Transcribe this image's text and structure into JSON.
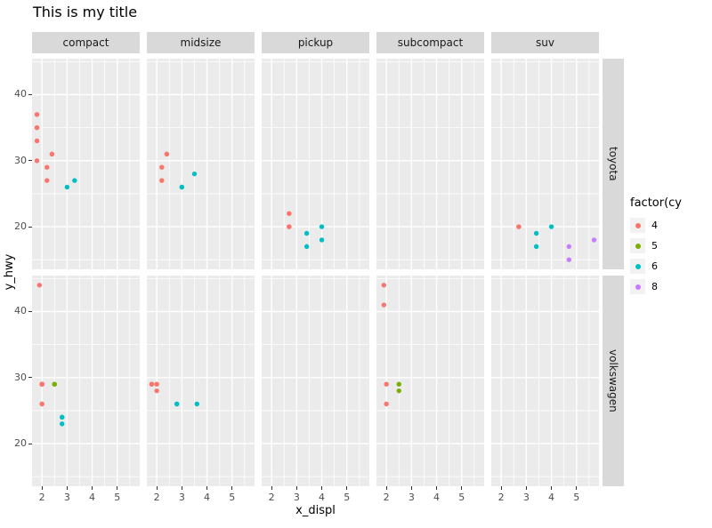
{
  "colors": {
    "panel_bg": "#EBEBEB",
    "strip_bg": "#D9D9D9",
    "strip_text": "#1A1A1A",
    "grid": "#FFFFFF",
    "axis_text": "#4D4D4D",
    "tick": "#333333",
    "title_text": "#000000",
    "legend_key_bg": "#F2F2F2"
  },
  "chart_data": {
    "type": "scatter",
    "title": "This is my title",
    "xlabel": "x_displ",
    "ylabel": "y_hwy",
    "facet_cols": [
      "compact",
      "midsize",
      "pickup",
      "subcompact",
      "suv"
    ],
    "facet_rows": [
      "toyota",
      "volkswagen"
    ],
    "x_ticks": [
      2,
      3,
      4,
      5
    ],
    "x_minor": [
      2.5,
      3.5,
      4.5,
      5.5
    ],
    "y_ticks": [
      20,
      30,
      40
    ],
    "y_minor": [
      15,
      25,
      35,
      45
    ],
    "xlim": [
      1.605,
      5.895
    ],
    "ylim": [
      13.55,
      45.45
    ],
    "grid": true,
    "legend": {
      "title": "factor(cy",
      "position": "right",
      "entries": [
        {
          "label": "4",
          "color": "#F8766D"
        },
        {
          "label": "5",
          "color": "#7CAE00"
        },
        {
          "label": "6",
          "color": "#00BFC4"
        },
        {
          "label": "8",
          "color": "#C77CFF"
        }
      ]
    },
    "cyl_colors": {
      "4": "#F8766D",
      "5": "#7CAE00",
      "6": "#00BFC4",
      "8": "#C77CFF"
    },
    "points": {
      "toyota": {
        "compact": [
          [
            1.8,
            30,
            4
          ],
          [
            1.8,
            33,
            4
          ],
          [
            1.8,
            35,
            4
          ],
          [
            1.8,
            35,
            4
          ],
          [
            1.8,
            37,
            4
          ],
          [
            2.2,
            27,
            4
          ],
          [
            2.2,
            29,
            4
          ],
          [
            2.4,
            31,
            4
          ],
          [
            2.4,
            31,
            4
          ],
          [
            3.0,
            26,
            6
          ],
          [
            3.3,
            27,
            6
          ]
        ],
        "midsize": [
          [
            2.2,
            27,
            4
          ],
          [
            2.2,
            29,
            4
          ],
          [
            2.4,
            31,
            4
          ],
          [
            2.4,
            31,
            4
          ],
          [
            3.0,
            26,
            6
          ],
          [
            3.0,
            26,
            6
          ],
          [
            3.5,
            28,
            6
          ]
        ],
        "pickup": [
          [
            2.7,
            20,
            4
          ],
          [
            2.7,
            20,
            4
          ],
          [
            2.7,
            22,
            4
          ],
          [
            3.4,
            17,
            6
          ],
          [
            3.4,
            19,
            6
          ],
          [
            4.0,
            18,
            6
          ],
          [
            4.0,
            20,
            6
          ]
        ],
        "subcompact": [],
        "suv": [
          [
            2.7,
            20,
            4
          ],
          [
            2.7,
            20,
            4
          ],
          [
            3.4,
            17,
            6
          ],
          [
            3.4,
            19,
            6
          ],
          [
            4.0,
            20,
            6
          ],
          [
            4.7,
            15,
            8
          ],
          [
            4.7,
            17,
            8
          ],
          [
            5.7,
            18,
            8
          ]
        ]
      },
      "volkswagen": {
        "compact": [
          [
            1.9,
            44,
            4
          ],
          [
            2.0,
            26,
            4
          ],
          [
            2.0,
            26,
            4
          ],
          [
            2.0,
            29,
            4
          ],
          [
            2.0,
            29,
            4
          ],
          [
            2.0,
            29,
            4
          ],
          [
            2.0,
            29,
            4
          ],
          [
            2.0,
            29,
            4
          ],
          [
            2.0,
            29,
            4
          ],
          [
            2.5,
            29,
            5
          ],
          [
            2.5,
            29,
            5
          ],
          [
            2.8,
            23,
            6
          ],
          [
            2.8,
            24,
            6
          ],
          [
            2.8,
            24,
            6
          ]
        ],
        "midsize": [
          [
            1.8,
            29,
            4
          ],
          [
            1.8,
            29,
            4
          ],
          [
            2.0,
            28,
            4
          ],
          [
            2.0,
            29,
            4
          ],
          [
            2.8,
            26,
            6
          ],
          [
            2.8,
            26,
            6
          ],
          [
            3.6,
            26,
            6
          ]
        ],
        "pickup": [],
        "subcompact": [
          [
            1.9,
            41,
            4
          ],
          [
            1.9,
            44,
            4
          ],
          [
            2.0,
            26,
            4
          ],
          [
            2.0,
            29,
            4
          ],
          [
            2.5,
            28,
            5
          ],
          [
            2.5,
            29,
            5
          ]
        ],
        "suv": []
      }
    }
  }
}
